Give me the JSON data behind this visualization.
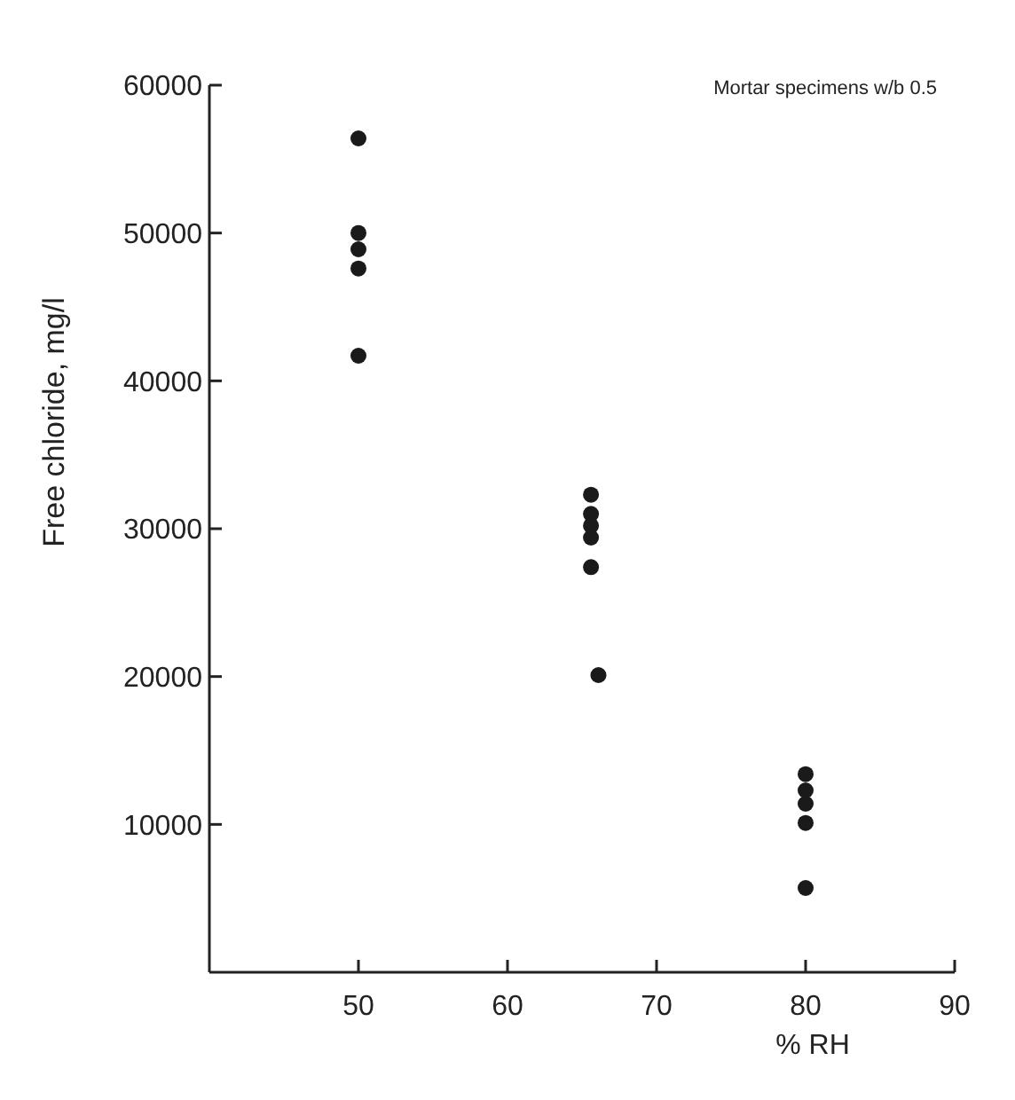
{
  "chart_data": {
    "type": "scatter",
    "xlabel": "% RH",
    "ylabel": "Free chloride, mg/l",
    "annotations": [
      "Mortar specimens  w/b 0.5"
    ],
    "x": [
      50,
      50,
      50,
      50,
      50,
      65.6,
      65.6,
      65.6,
      65.6,
      65.6,
      66.1,
      80,
      80,
      80,
      80,
      80
    ],
    "series": [
      {
        "color": "#1a1a1a",
        "values": [
          56400,
          50000,
          48900,
          47600,
          41700,
          32300,
          31000,
          30200,
          29400,
          27400,
          20100,
          13400,
          12300,
          11400,
          10100,
          5700
        ]
      }
    ],
    "xlim": [
      40,
      90
    ],
    "xticks": [
      50,
      60,
      70,
      80,
      90
    ],
    "ylim": [
      0,
      60000
    ],
    "yticks": [
      {
        "value": 10000,
        "label": "10000"
      },
      {
        "value": 20000,
        "label": "20000"
      },
      {
        "value": 30000,
        "label": "30000"
      },
      {
        "value": 40000,
        "label": "40000"
      },
      {
        "value": 50000,
        "label": "50000"
      },
      {
        "value": 60000,
        "label": "60000"
      }
    ],
    "marker": "circle"
  }
}
